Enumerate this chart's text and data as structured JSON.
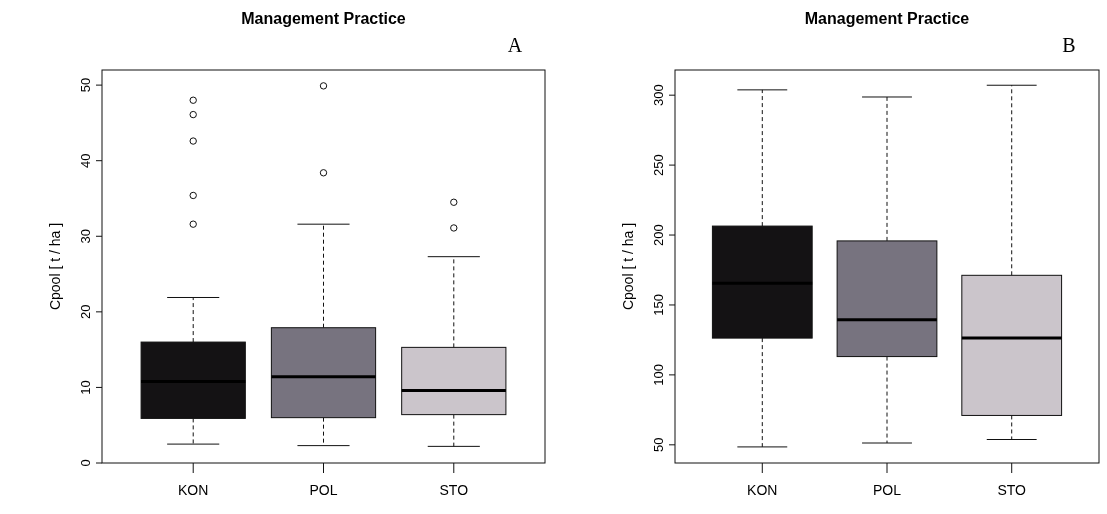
{
  "chart_data": [
    {
      "type": "box",
      "title": "Management Practice",
      "ylabel": "Cpool [ t / ha ]",
      "annotations": [
        "A"
      ],
      "categories": [
        "KON",
        "POL",
        "STO"
      ],
      "colors": [
        "#141214",
        "#77737f",
        "#cbc5cb"
      ],
      "ylim": [
        0,
        52
      ],
      "yticks": [
        0,
        10,
        20,
        30,
        40,
        50
      ],
      "boxes": [
        {
          "low": 2.5,
          "q1": 5.9,
          "median": 10.8,
          "q3": 16.0,
          "high": 21.9,
          "outliers": [
            48.0,
            46.1,
            42.6,
            35.4,
            31.6
          ]
        },
        {
          "low": 2.3,
          "q1": 6.0,
          "median": 11.4,
          "q3": 17.9,
          "high": 31.6,
          "outliers": [
            49.9,
            38.4
          ]
        },
        {
          "low": 2.2,
          "q1": 6.4,
          "median": 9.6,
          "q3": 15.3,
          "high": 27.3,
          "outliers": [
            34.5,
            31.1
          ]
        }
      ]
    },
    {
      "type": "box",
      "title": "Management Practice",
      "ylabel": "Cpool [ t / ha ]",
      "annotations": [
        "B"
      ],
      "categories": [
        "KON",
        "POL",
        "STO"
      ],
      "colors": [
        "#141214",
        "#77737f",
        "#cbc5cb"
      ],
      "ylim": [
        37,
        318
      ],
      "yticks": [
        50,
        100,
        150,
        200,
        250,
        300
      ],
      "boxes": [
        {
          "low": 48.5,
          "q1": 126.3,
          "median": 165.6,
          "q3": 206.4,
          "high": 303.8
        },
        {
          "low": 51.3,
          "q1": 113.1,
          "median": 139.4,
          "q3": 195.8,
          "high": 298.7
        },
        {
          "low": 53.8,
          "q1": 71.0,
          "median": 126.3,
          "q3": 171.2,
          "high": 307.1
        }
      ]
    }
  ]
}
